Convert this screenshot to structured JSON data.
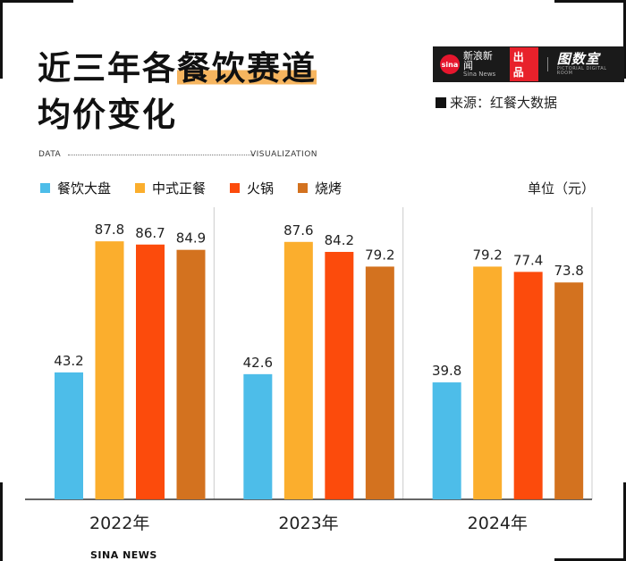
{
  "title": {
    "line1_pre": "近三年各",
    "line1_hl": "餐饮赛道",
    "line2": "均价变化"
  },
  "brand": {
    "logo": "sina",
    "name_cn": "新浪新闻",
    "name_en": "Sina News",
    "chupin": "出品",
    "tushuo": "图数室",
    "tushuo_en": "PICTORIAL DIGITAL ROOM"
  },
  "source": "来源：红餐大数据",
  "header_band": {
    "left": "DATA",
    "right": "VISUALIZATION"
  },
  "unit": "单位（元）",
  "footer": "SINA NEWS",
  "colors": {
    "accent": "#f6b55f",
    "brand_red": "#e8212b"
  },
  "chart_data": {
    "type": "bar",
    "categories": [
      "2022年",
      "2023年",
      "2024年"
    ],
    "series": [
      {
        "name": "餐饮大盘",
        "color": "#4dbde9",
        "values": [
          43.2,
          42.6,
          39.8
        ]
      },
      {
        "name": "中式正餐",
        "color": "#fbae2d",
        "values": [
          87.8,
          87.6,
          79.2
        ]
      },
      {
        "name": "火锅",
        "color": "#fc4b0c",
        "values": [
          86.7,
          84.2,
          77.4
        ]
      },
      {
        "name": "烧烤",
        "color": "#d3721f",
        "values": [
          84.9,
          79.2,
          73.8
        ]
      }
    ],
    "ylim": [
      0,
      100
    ],
    "grid": false,
    "legend": "top-left",
    "ylabel": "单位（元）"
  }
}
